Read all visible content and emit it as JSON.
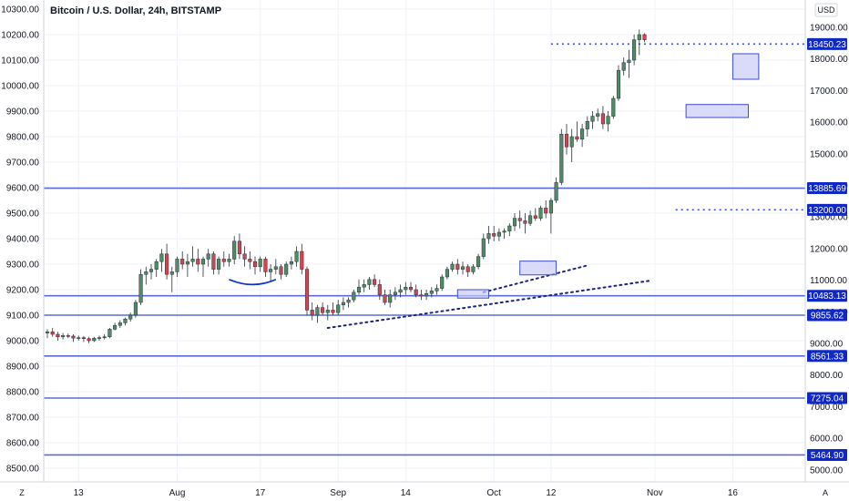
{
  "chart_data": {
    "type": "candlestick",
    "title": "Bitcoin / U.S. Dollar, 24h, BITSTAMP",
    "currency_button": "USD",
    "corner_left": "Z",
    "corner_right": "A",
    "left_axis": {
      "min": 8430,
      "max": 10320,
      "ticks": [
        "10300.00",
        "10200.00",
        "10100.00",
        "10000.00",
        "9900.00",
        "9800.00",
        "9700.00",
        "9600.00",
        "9500.00",
        "9400.00",
        "9300.00",
        "9200.00",
        "9100.00",
        "9000.00",
        "8900.00",
        "8800.00",
        "8700.00",
        "8600.00",
        "8500.00"
      ]
    },
    "right_axis": {
      "ticks": [
        "19000.00",
        "18000.00",
        "17000.00",
        "16000.00",
        "15000.00",
        "14000.00",
        "13000.00",
        "12000.00",
        "11000.00",
        "10000.00",
        "9000.00",
        "8000.00",
        "7000.00",
        "6000.00",
        "5000.00"
      ]
    },
    "x_axis": {
      "labels": [
        {
          "text": "13",
          "date": "2020-07-13"
        },
        {
          "text": "Aug",
          "date": "2020-08-01"
        },
        {
          "text": "17",
          "date": "2020-08-17"
        },
        {
          "text": "Sep",
          "date": "2020-09-01"
        },
        {
          "text": "14",
          "date": "2020-09-14"
        },
        {
          "text": "Oct",
          "date": "2020-10-01"
        },
        {
          "text": "12",
          "date": "2020-10-12"
        },
        {
          "text": "Nov",
          "date": "2020-11-01"
        },
        {
          "text": "16",
          "date": "2020-11-16"
        }
      ]
    },
    "start_date": "2020-07-07",
    "candles": [
      [
        9030,
        9045,
        9010,
        9035
      ],
      [
        9035,
        9050,
        9015,
        9025
      ],
      [
        9025,
        9035,
        9000,
        9015
      ],
      [
        9015,
        9030,
        9005,
        9020
      ],
      [
        9020,
        9028,
        9010,
        9018
      ],
      [
        9018,
        9025,
        8995,
        9010
      ],
      [
        9010,
        9020,
        9000,
        9012
      ],
      [
        9012,
        9018,
        8995,
        9008
      ],
      [
        9008,
        9015,
        8990,
        9000
      ],
      [
        9000,
        9015,
        8995,
        9010
      ],
      [
        9010,
        9020,
        9000,
        9012
      ],
      [
        9012,
        9025,
        9005,
        9015
      ],
      [
        9015,
        9050,
        9010,
        9045
      ],
      [
        9045,
        9070,
        9040,
        9060
      ],
      [
        9060,
        9080,
        9050,
        9070
      ],
      [
        9070,
        9090,
        9060,
        9085
      ],
      [
        9085,
        9110,
        9075,
        9100
      ],
      [
        9100,
        9160,
        9090,
        9150
      ],
      [
        9150,
        9280,
        9140,
        9260
      ],
      [
        9260,
        9290,
        9220,
        9270
      ],
      [
        9270,
        9300,
        9240,
        9280
      ],
      [
        9280,
        9320,
        9250,
        9310
      ],
      [
        9310,
        9360,
        9270,
        9340
      ],
      [
        9340,
        9380,
        9240,
        9260
      ],
      [
        9260,
        9290,
        9190,
        9270
      ],
      [
        9270,
        9330,
        9250,
        9320
      ],
      [
        9320,
        9350,
        9280,
        9300
      ],
      [
        9300,
        9340,
        9250,
        9310
      ],
      [
        9310,
        9370,
        9290,
        9320
      ],
      [
        9320,
        9360,
        9270,
        9300
      ],
      [
        9300,
        9330,
        9250,
        9320
      ],
      [
        9320,
        9360,
        9290,
        9340
      ],
      [
        9340,
        9350,
        9260,
        9280
      ],
      [
        9280,
        9330,
        9260,
        9320
      ],
      [
        9320,
        9350,
        9290,
        9310
      ],
      [
        9310,
        9340,
        9290,
        9320
      ],
      [
        9320,
        9410,
        9300,
        9390
      ],
      [
        9390,
        9420,
        9320,
        9340
      ],
      [
        9340,
        9370,
        9290,
        9320
      ],
      [
        9320,
        9350,
        9280,
        9310
      ],
      [
        9310,
        9330,
        9260,
        9290
      ],
      [
        9290,
        9330,
        9270,
        9320
      ],
      [
        9320,
        9330,
        9250,
        9270
      ],
      [
        9270,
        9300,
        9230,
        9280
      ],
      [
        9280,
        9320,
        9260,
        9290
      ],
      [
        9290,
        9300,
        9240,
        9260
      ],
      [
        9260,
        9310,
        9250,
        9300
      ],
      [
        9300,
        9330,
        9280,
        9310
      ],
      [
        9310,
        9370,
        9290,
        9350
      ],
      [
        9350,
        9380,
        9260,
        9280
      ],
      [
        9280,
        9290,
        9100,
        9120
      ],
      [
        9120,
        9150,
        9080,
        9100
      ],
      [
        9100,
        9140,
        9070,
        9130
      ],
      [
        9130,
        9150,
        9100,
        9110
      ],
      [
        9110,
        9140,
        9080,
        9120
      ],
      [
        9120,
        9150,
        9100,
        9110
      ],
      [
        9110,
        9160,
        9100,
        9140
      ],
      [
        9140,
        9170,
        9120,
        9150
      ],
      [
        9150,
        9170,
        9130,
        9160
      ],
      [
        9160,
        9200,
        9150,
        9190
      ],
      [
        9190,
        9240,
        9180,
        9210
      ],
      [
        9210,
        9240,
        9190,
        9220
      ],
      [
        9220,
        9250,
        9200,
        9240
      ],
      [
        9240,
        9260,
        9210,
        9220
      ],
      [
        9220,
        9240,
        9160,
        9180
      ],
      [
        9180,
        9200,
        9140,
        9150
      ],
      [
        9150,
        9200,
        9130,
        9180
      ],
      [
        9180,
        9210,
        9160,
        9190
      ],
      [
        9190,
        9220,
        9170,
        9200
      ],
      [
        9200,
        9230,
        9180,
        9210
      ],
      [
        9210,
        9230,
        9190,
        9200
      ],
      [
        9200,
        9220,
        9170,
        9180
      ],
      [
        9180,
        9200,
        9160,
        9175
      ],
      [
        9175,
        9200,
        9160,
        9185
      ],
      [
        9185,
        9210,
        9170,
        9195
      ],
      [
        9195,
        9220,
        9180,
        9205
      ],
      [
        9205,
        9260,
        9195,
        9250
      ],
      [
        9250,
        9290,
        9240,
        9280
      ],
      [
        9280,
        9310,
        9270,
        9300
      ],
      [
        9300,
        9320,
        9260,
        9280
      ],
      [
        9280,
        9310,
        9260,
        9290
      ],
      [
        9290,
        9300,
        9250,
        9270
      ],
      [
        9270,
        9300,
        9260,
        9290
      ],
      [
        9290,
        9340,
        9280,
        9330
      ],
      [
        9330,
        9420,
        9320,
        9400
      ],
      [
        9400,
        9450,
        9380,
        9420
      ],
      [
        9420,
        9450,
        9390,
        9410
      ],
      [
        9410,
        9440,
        9390,
        9425
      ],
      [
        9425,
        9440,
        9400,
        9430
      ],
      [
        9430,
        9460,
        9410,
        9450
      ],
      [
        9450,
        9500,
        9430,
        9480
      ],
      [
        9480,
        9510,
        9440,
        9470
      ],
      [
        9470,
        9500,
        9420,
        9460
      ],
      [
        9460,
        9510,
        9450,
        9490
      ],
      [
        9490,
        9520,
        9470,
        9480
      ],
      [
        9480,
        9530,
        9470,
        9520
      ],
      [
        9520,
        9550,
        9480,
        9500
      ],
      [
        9500,
        9560,
        9420,
        9550
      ],
      [
        9550,
        9640,
        9540,
        9620
      ],
      [
        9620,
        9830,
        9610,
        9810
      ],
      [
        9810,
        9850,
        9730,
        9760
      ],
      [
        9760,
        9830,
        9700,
        9800
      ],
      [
        9800,
        9860,
        9780,
        9790
      ],
      [
        9790,
        9850,
        9760,
        9830
      ],
      [
        9830,
        9880,
        9800,
        9860
      ],
      [
        9860,
        9900,
        9830,
        9880
      ],
      [
        9880,
        9910,
        9860,
        9890
      ],
      [
        9890,
        9920,
        9830,
        9850
      ],
      [
        9850,
        9900,
        9820,
        9880
      ],
      [
        9880,
        9960,
        9870,
        9950
      ],
      [
        9950,
        10080,
        9940,
        10060
      ],
      [
        10060,
        10110,
        10040,
        10090
      ],
      [
        10090,
        10140,
        10030,
        10100
      ],
      [
        10100,
        10200,
        10080,
        10180
      ],
      [
        10180,
        10220,
        10120,
        10200
      ],
      [
        10200,
        10205,
        10170,
        10180
      ]
    ],
    "horizontal_levels": [
      {
        "value": 9598,
        "label": "13885.69"
      },
      {
        "value": 9176,
        "label": "10483.13"
      },
      {
        "value": 9100,
        "label": "9855.62"
      },
      {
        "value": 8940,
        "label": "8561.33"
      },
      {
        "value": 8775,
        "label": "7275.04"
      },
      {
        "value": 8552,
        "label": "5464.90"
      }
    ],
    "dotted_levels": [
      {
        "value": 10163,
        "label": "18450.23",
        "from_date": "2020-10-12"
      },
      {
        "value": 9513,
        "label": "13200.00",
        "from_date": "2020-11-05"
      }
    ],
    "trendlines": [
      {
        "from": [
          "2020-08-30",
          9050
        ],
        "to": [
          "2020-10-31",
          9235
        ]
      },
      {
        "from": [
          "2020-09-29",
          9190
        ],
        "to": [
          "2020-10-19",
          9295
        ]
      }
    ],
    "rectangles": [
      {
        "from": [
          "2020-09-24",
          9200
        ],
        "to": [
          "2020-09-30",
          9167
        ]
      },
      {
        "from": [
          "2020-10-06",
          9312
        ],
        "to": [
          "2020-10-13",
          9258
        ]
      },
      {
        "from": [
          "2020-11-07",
          9926
        ],
        "to": [
          "2020-11-19",
          9875
        ]
      },
      {
        "from": [
          "2020-11-16",
          10125
        ],
        "to": [
          "2020-11-21",
          10025
        ]
      }
    ],
    "arc": {
      "from": [
        "2020-08-11",
        9240
      ],
      "to": [
        "2020-08-20",
        9240
      ],
      "depth": 9220
    },
    "colors": {
      "up": "#4f8c64",
      "down": "#d4434e",
      "level": "#5b6bd6",
      "badge": "#1029c4",
      "dotted": "#3f4bd4",
      "rect_fill": "#c9ccf5",
      "rect_stroke": "#3f4bd4",
      "arc": "#1035c8",
      "trend": "#1a237e",
      "grid": "#f0f3fa",
      "axis_text": "#131722"
    }
  }
}
